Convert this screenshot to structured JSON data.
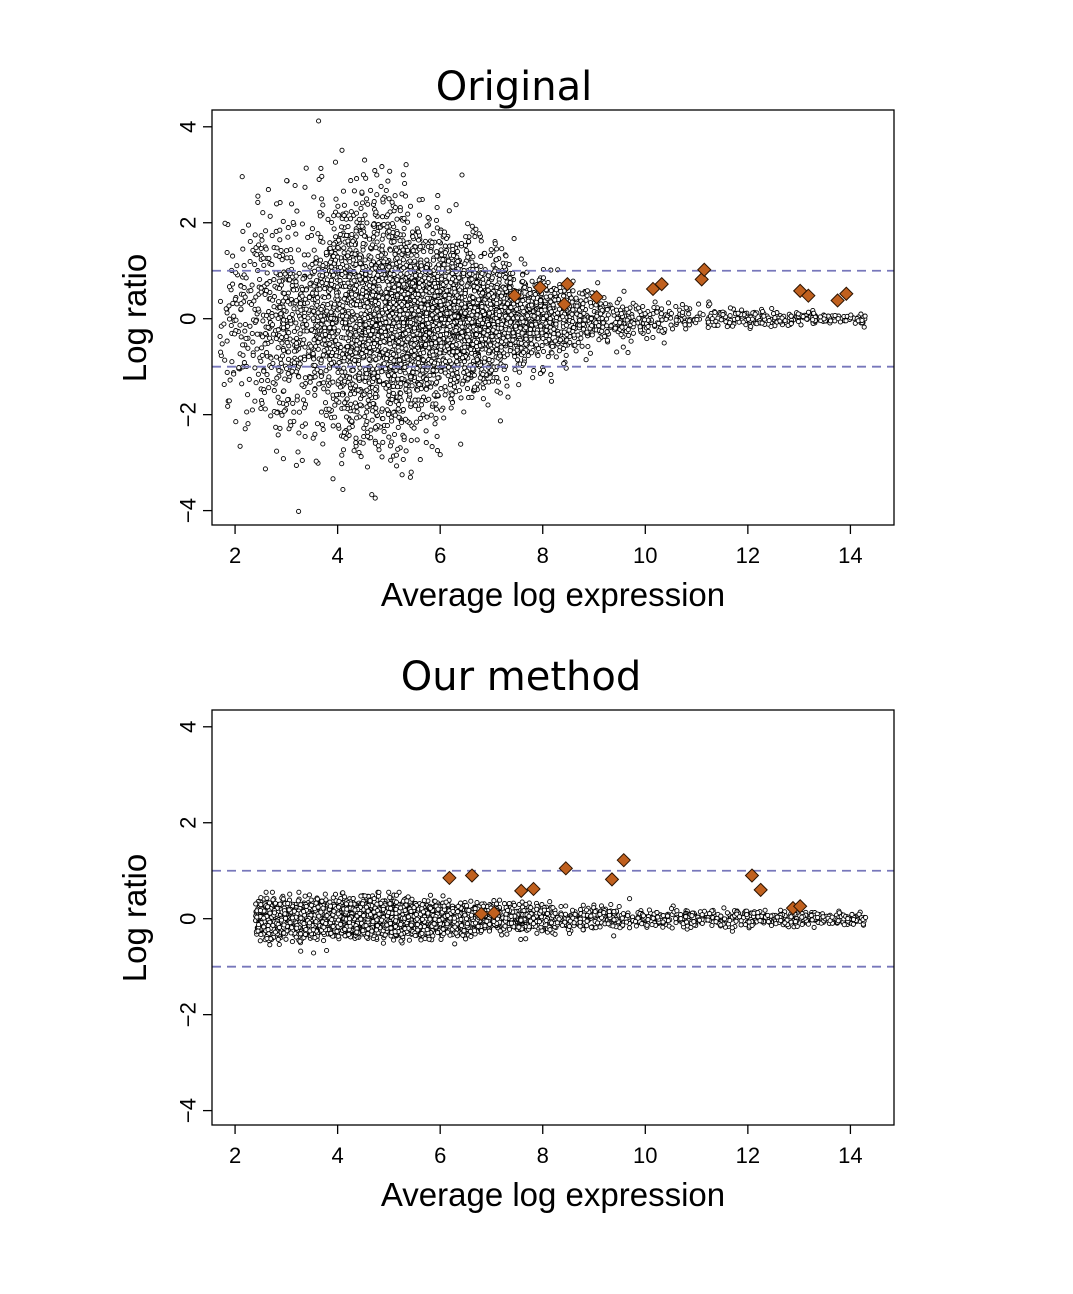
{
  "chart_data": [
    {
      "type": "scatter",
      "title": "Original",
      "xlabel": "Average log expression",
      "ylabel": "Log ratio",
      "xlim": [
        1.55,
        14.85
      ],
      "ylim": [
        -4.3,
        4.35
      ],
      "xticks": [
        2,
        4,
        6,
        8,
        10,
        12,
        14
      ],
      "yticks": [
        -4,
        -2,
        0,
        2,
        4
      ],
      "reference_lines_y": [
        -1,
        1
      ],
      "grid": false,
      "background_points": {
        "description_of_cloud": "thousands of genes; MA-plot cloud",
        "count": 5200,
        "x_range": [
          1.7,
          14.3
        ],
        "spread_max_sd": 1.25,
        "spread_peak_x": 5.2
      },
      "highlighted_points": [
        {
          "x": 7.45,
          "y": 0.48
        },
        {
          "x": 7.95,
          "y": 0.65
        },
        {
          "x": 8.42,
          "y": 0.3
        },
        {
          "x": 8.48,
          "y": 0.72
        },
        {
          "x": 9.05,
          "y": 0.45
        },
        {
          "x": 10.15,
          "y": 0.62
        },
        {
          "x": 10.32,
          "y": 0.72
        },
        {
          "x": 11.1,
          "y": 0.82
        },
        {
          "x": 11.15,
          "y": 1.02
        },
        {
          "x": 13.02,
          "y": 0.58
        },
        {
          "x": 13.18,
          "y": 0.48
        },
        {
          "x": 13.75,
          "y": 0.38
        },
        {
          "x": 13.92,
          "y": 0.52
        }
      ]
    },
    {
      "type": "scatter",
      "title": "Our method",
      "xlabel": "Average log expression",
      "ylabel": "Log ratio",
      "xlim": [
        1.55,
        14.85
      ],
      "ylim": [
        -4.3,
        4.35
      ],
      "xticks": [
        2,
        4,
        6,
        8,
        10,
        12,
        14
      ],
      "yticks": [
        -4,
        -2,
        0,
        2,
        4
      ],
      "reference_lines_y": [
        -1,
        1
      ],
      "grid": false,
      "background_points": {
        "count": 5200,
        "x_range": [
          2.4,
          14.3
        ],
        "spread_max_sd": 0.2,
        "spread_peak_x": 3.5
      },
      "highlighted_points": [
        {
          "x": 6.18,
          "y": 0.85
        },
        {
          "x": 6.62,
          "y": 0.9
        },
        {
          "x": 6.8,
          "y": 0.1
        },
        {
          "x": 7.05,
          "y": 0.12
        },
        {
          "x": 7.58,
          "y": 0.58
        },
        {
          "x": 7.82,
          "y": 0.62
        },
        {
          "x": 8.45,
          "y": 1.05
        },
        {
          "x": 9.35,
          "y": 0.82
        },
        {
          "x": 9.58,
          "y": 1.22
        },
        {
          "x": 12.08,
          "y": 0.9
        },
        {
          "x": 12.25,
          "y": 0.6
        },
        {
          "x": 12.88,
          "y": 0.22
        },
        {
          "x": 13.02,
          "y": 0.26
        }
      ]
    }
  ]
}
